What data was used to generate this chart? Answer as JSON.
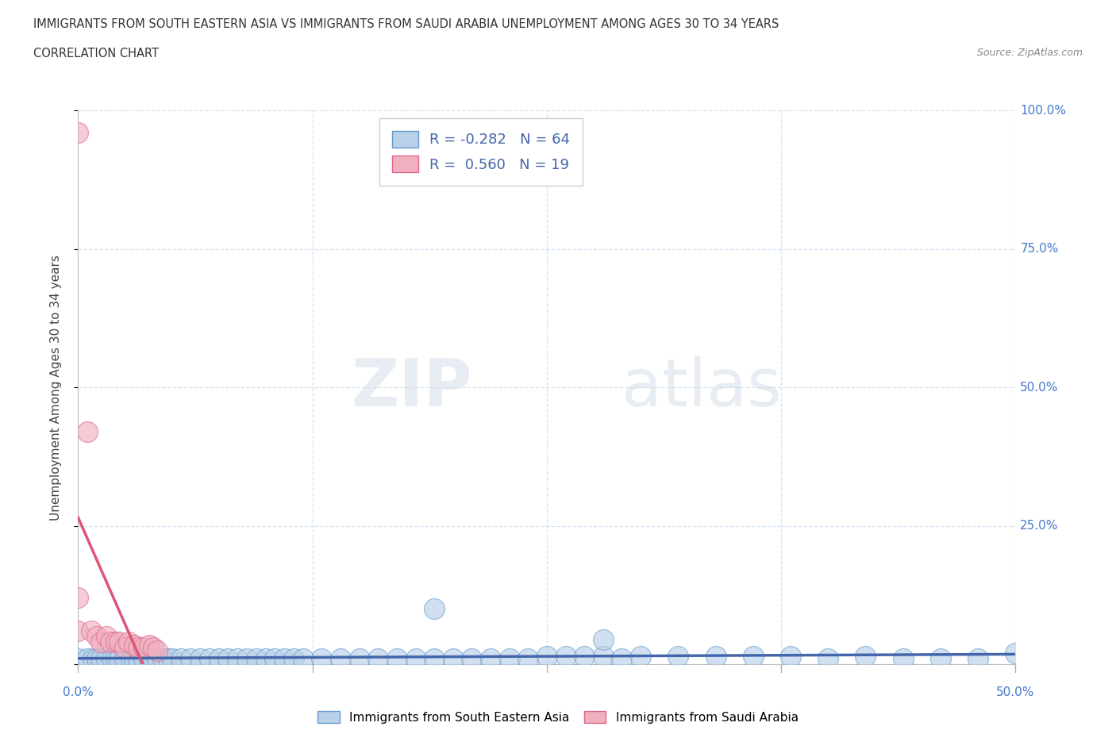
{
  "title_line1": "IMMIGRANTS FROM SOUTH EASTERN ASIA VS IMMIGRANTS FROM SAUDI ARABIA UNEMPLOYMENT AMONG AGES 30 TO 34 YEARS",
  "title_line2": "CORRELATION CHART",
  "source_text": "Source: ZipAtlas.com",
  "ylabel": "Unemployment Among Ages 30 to 34 years",
  "xlim": [
    0.0,
    0.5
  ],
  "ylim": [
    0.0,
    1.0
  ],
  "xtick_labels": [
    "0.0%",
    "",
    "",
    "",
    "50.0%"
  ],
  "xtick_values": [
    0.0,
    0.125,
    0.25,
    0.375,
    0.5
  ],
  "ytick_labels": [
    "100.0%",
    "75.0%",
    "50.0%",
    "25.0%",
    ""
  ],
  "ytick_values": [
    1.0,
    0.75,
    0.5,
    0.25,
    0.0
  ],
  "watermark_zip": "ZIP",
  "watermark_atlas": "atlas",
  "legend_blue_label": "Immigrants from South Eastern Asia",
  "legend_pink_label": "Immigrants from Saudi Arabia",
  "blue_R": -0.282,
  "blue_N": 64,
  "pink_R": 0.56,
  "pink_N": 19,
  "blue_fill_color": "#b8d0e8",
  "pink_fill_color": "#f0b0c0",
  "blue_edge_color": "#6699cc",
  "pink_edge_color": "#dd6688",
  "blue_line_color": "#4466aa",
  "pink_line_color": "#dd5577",
  "grid_color": "#c8ddf0",
  "tick_color": "#4477cc",
  "background_color": "#ffffff",
  "blue_scatter_x": [
    0.0,
    0.005,
    0.008,
    0.01,
    0.012,
    0.015,
    0.018,
    0.02,
    0.022,
    0.025,
    0.028,
    0.03,
    0.032,
    0.035,
    0.038,
    0.04,
    0.042,
    0.045,
    0.048,
    0.05,
    0.055,
    0.06,
    0.065,
    0.07,
    0.075,
    0.08,
    0.085,
    0.09,
    0.095,
    0.1,
    0.105,
    0.11,
    0.115,
    0.12,
    0.13,
    0.14,
    0.15,
    0.16,
    0.17,
    0.18,
    0.19,
    0.2,
    0.21,
    0.22,
    0.23,
    0.24,
    0.25,
    0.26,
    0.27,
    0.28,
    0.29,
    0.3,
    0.32,
    0.34,
    0.36,
    0.38,
    0.4,
    0.42,
    0.44,
    0.46,
    0.48,
    0.5,
    0.19,
    0.28
  ],
  "blue_scatter_y": [
    0.01,
    0.01,
    0.01,
    0.01,
    0.01,
    0.01,
    0.01,
    0.01,
    0.01,
    0.01,
    0.01,
    0.01,
    0.01,
    0.01,
    0.01,
    0.01,
    0.01,
    0.01,
    0.01,
    0.01,
    0.01,
    0.01,
    0.01,
    0.01,
    0.01,
    0.01,
    0.01,
    0.01,
    0.01,
    0.01,
    0.01,
    0.01,
    0.01,
    0.01,
    0.01,
    0.01,
    0.01,
    0.01,
    0.01,
    0.01,
    0.01,
    0.01,
    0.01,
    0.01,
    0.01,
    0.01,
    0.015,
    0.015,
    0.015,
    0.015,
    0.01,
    0.015,
    0.015,
    0.015,
    0.015,
    0.015,
    0.01,
    0.015,
    0.01,
    0.01,
    0.01,
    0.02,
    0.1,
    0.045
  ],
  "pink_scatter_x": [
    0.0,
    0.0,
    0.0,
    0.005,
    0.007,
    0.01,
    0.012,
    0.015,
    0.017,
    0.02,
    0.022,
    0.025,
    0.027,
    0.03,
    0.032,
    0.035,
    0.038,
    0.04,
    0.042
  ],
  "pink_scatter_y": [
    0.96,
    0.12,
    0.06,
    0.42,
    0.06,
    0.05,
    0.04,
    0.05,
    0.04,
    0.04,
    0.04,
    0.03,
    0.04,
    0.035,
    0.03,
    0.03,
    0.035,
    0.03,
    0.025
  ]
}
